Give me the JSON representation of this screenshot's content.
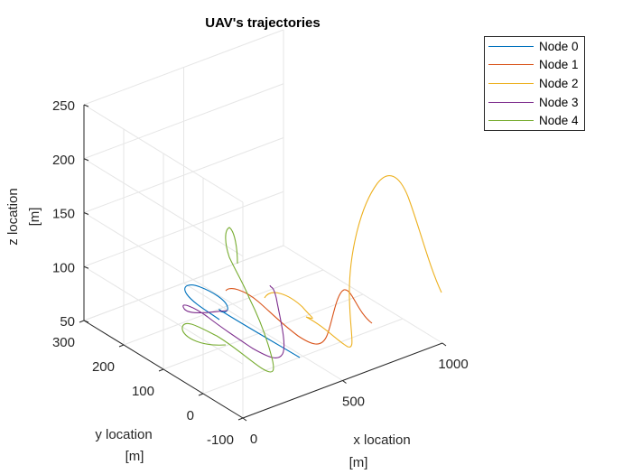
{
  "chart_data": {
    "type": "line3d",
    "title": "UAV's trajectories",
    "xlabel": [
      "x location",
      "[m]"
    ],
    "ylabel": [
      "y location",
      "[m]"
    ],
    "zlabel": [
      "z location",
      "[m]"
    ],
    "xlim": [
      0,
      1000
    ],
    "ylim": [
      -100,
      300
    ],
    "zlim": [
      50,
      250
    ],
    "xticks": [
      "0",
      "500",
      "1000"
    ],
    "yticks": [
      "-100",
      "0",
      "100",
      "200",
      "300"
    ],
    "zticks": [
      "50",
      "100",
      "150",
      "200",
      "250"
    ],
    "grid": true,
    "legend_position": "top-right",
    "series": [
      {
        "name": "Node 0",
        "color": "#0072BD"
      },
      {
        "name": "Node 1",
        "color": "#D95319"
      },
      {
        "name": "Node 2",
        "color": "#EDB120"
      },
      {
        "name": "Node 3",
        "color": "#7E2F8E"
      },
      {
        "name": "Node 4",
        "color": "#77AC30"
      }
    ]
  }
}
